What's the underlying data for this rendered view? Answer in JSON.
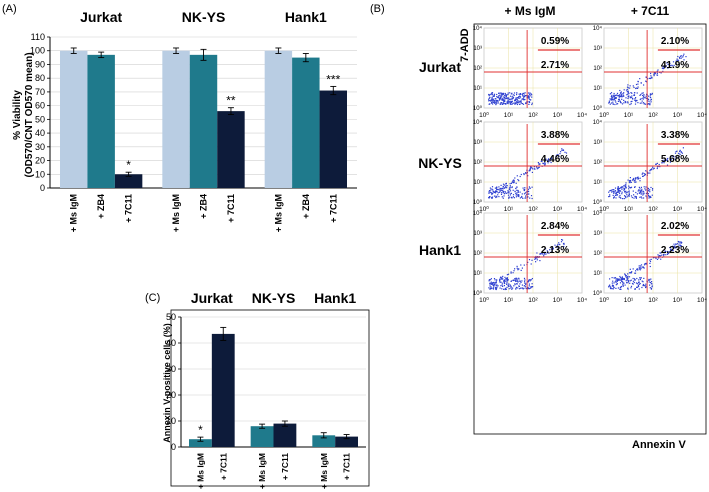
{
  "colors": {
    "light": "#b9cde3",
    "mid": "#1f7a8c",
    "dark": "#0d1b3a",
    "scatter": "#2d3fd0",
    "gate": "#e03030",
    "plotframe": "#c9c9c9"
  },
  "panelA": {
    "label": "(A)",
    "groups": [
      "Jurkat",
      "NK-YS",
      "Hank1"
    ],
    "categories": [
      "+ Ms IgM",
      "+ ZB4",
      "+ 7C11"
    ],
    "ylabel_line1": "% Viability",
    "ylabel_line2": "(OD570/CNT OD570 mean)",
    "yticks": [
      "0",
      "10",
      "20",
      "30",
      "40",
      "50",
      "60",
      "70",
      "80",
      "90",
      "100",
      "110"
    ]
  },
  "panelC": {
    "label": "(C)",
    "groups": [
      "Jurkat",
      "NK-YS",
      "Hank1"
    ],
    "categories": [
      "+ Ms IgM",
      "+ 7C11"
    ],
    "ylabel": "Annexin V-positive cells (%)",
    "yticks": [
      "0",
      "10",
      "20",
      "30",
      "40",
      "50"
    ]
  },
  "panelB": {
    "label": "(B)",
    "columns": [
      "+ Ms IgM",
      "+ 7C11"
    ],
    "rows": [
      "Jurkat",
      "NK-YS",
      "Hank1"
    ],
    "yaxis_label": "7-ADD",
    "xaxis_label": "Annexin V",
    "axis_ticks": [
      "10⁰",
      "10¹",
      "10²",
      "10³",
      "10⁴"
    ],
    "percentages": [
      [
        [
          "0.59%",
          "2.71%"
        ],
        [
          "2.10%",
          "41.9%"
        ]
      ],
      [
        [
          "3.88%",
          "4.46%"
        ],
        [
          "3.38%",
          "5.68%"
        ]
      ],
      [
        [
          "2.84%",
          "2.13%"
        ],
        [
          "2.02%",
          "2.23%"
        ]
      ]
    ]
  },
  "chart_data": [
    {
      "type": "bar",
      "title": "",
      "ylabel": "% Viability (OD570/CNT OD570 mean)",
      "ylim": [
        0,
        110
      ],
      "groups": [
        "Jurkat",
        "NK-YS",
        "Hank1"
      ],
      "categories": [
        "+ Ms IgM",
        "+ ZB4",
        "+ 7C11"
      ],
      "series": [
        {
          "name": "Jurkat",
          "values": [
            100,
            97,
            10
          ],
          "errors": [
            2,
            2,
            1.5
          ],
          "significance": [
            "",
            "",
            "*"
          ]
        },
        {
          "name": "NK-YS",
          "values": [
            100,
            97,
            56
          ],
          "errors": [
            2,
            4,
            2.5
          ],
          "significance": [
            "",
            "",
            "**"
          ]
        },
        {
          "name": "Hank1",
          "values": [
            100,
            95,
            71
          ],
          "errors": [
            2,
            3,
            3
          ],
          "significance": [
            "",
            "",
            "***"
          ]
        }
      ]
    },
    {
      "type": "bar",
      "title": "",
      "ylabel": "Annexin V-positive cells (%)",
      "ylim": [
        0,
        50
      ],
      "groups": [
        "Jurkat",
        "NK-YS",
        "Hank1"
      ],
      "categories": [
        "+ Ms IgM",
        "+ 7C11"
      ],
      "series": [
        {
          "name": "Jurkat",
          "values": [
            3,
            43.5
          ],
          "errors": [
            0.8,
            2.5
          ],
          "significance": [
            "*",
            ""
          ]
        },
        {
          "name": "NK-YS",
          "values": [
            8,
            9
          ],
          "errors": [
            0.8,
            1
          ],
          "significance": [
            "",
            ""
          ]
        },
        {
          "name": "Hank1",
          "values": [
            4.5,
            4
          ],
          "errors": [
            1,
            0.8
          ],
          "significance": [
            "",
            ""
          ]
        }
      ]
    }
  ]
}
